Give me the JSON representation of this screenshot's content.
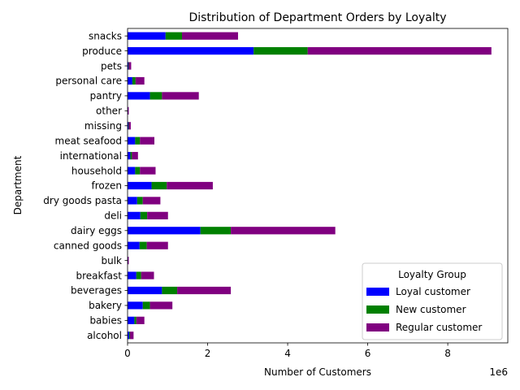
{
  "chart_data": {
    "type": "bar",
    "orientation": "horizontal",
    "stacked": true,
    "title": "Distribution of Department Orders by Loyalty",
    "xlabel": "Number of Customers",
    "ylabel": "Department",
    "x_scale_label": "1e6",
    "xlim": [
      0,
      9.5
    ],
    "x_ticks": [
      0,
      2,
      4,
      6,
      8
    ],
    "x_tick_labels": [
      "0",
      "2",
      "4",
      "6",
      "8"
    ],
    "grid": false,
    "legend": {
      "title": "Loyalty Group",
      "placement": "lower-right"
    },
    "categories": [
      "alcohol",
      "babies",
      "bakery",
      "beverages",
      "breakfast",
      "bulk",
      "canned goods",
      "dairy eggs",
      "deli",
      "dry goods pasta",
      "frozen",
      "household",
      "international",
      "meat seafood",
      "missing",
      "other",
      "pantry",
      "personal care",
      "pets",
      "produce",
      "snacks"
    ],
    "series": [
      {
        "name": "Loyal customer",
        "color": "#0000ff",
        "values": [
          0.04,
          0.17,
          0.38,
          0.86,
          0.22,
          0.01,
          0.3,
          1.82,
          0.32,
          0.24,
          0.6,
          0.19,
          0.07,
          0.19,
          0.02,
          0.01,
          0.56,
          0.12,
          0.02,
          3.15,
          0.95
        ]
      },
      {
        "name": "New customer",
        "color": "#008000",
        "values": [
          0.02,
          0.05,
          0.18,
          0.38,
          0.12,
          0.0,
          0.18,
          0.76,
          0.17,
          0.14,
          0.38,
          0.12,
          0.04,
          0.12,
          0.01,
          0.0,
          0.3,
          0.08,
          0.01,
          1.35,
          0.41
        ]
      },
      {
        "name": "Regular customer",
        "color": "#800080",
        "values": [
          0.09,
          0.2,
          0.56,
          1.34,
          0.32,
          0.02,
          0.53,
          2.61,
          0.52,
          0.44,
          1.15,
          0.39,
          0.15,
          0.36,
          0.05,
          0.02,
          0.92,
          0.22,
          0.06,
          4.59,
          1.4
        ]
      }
    ]
  }
}
